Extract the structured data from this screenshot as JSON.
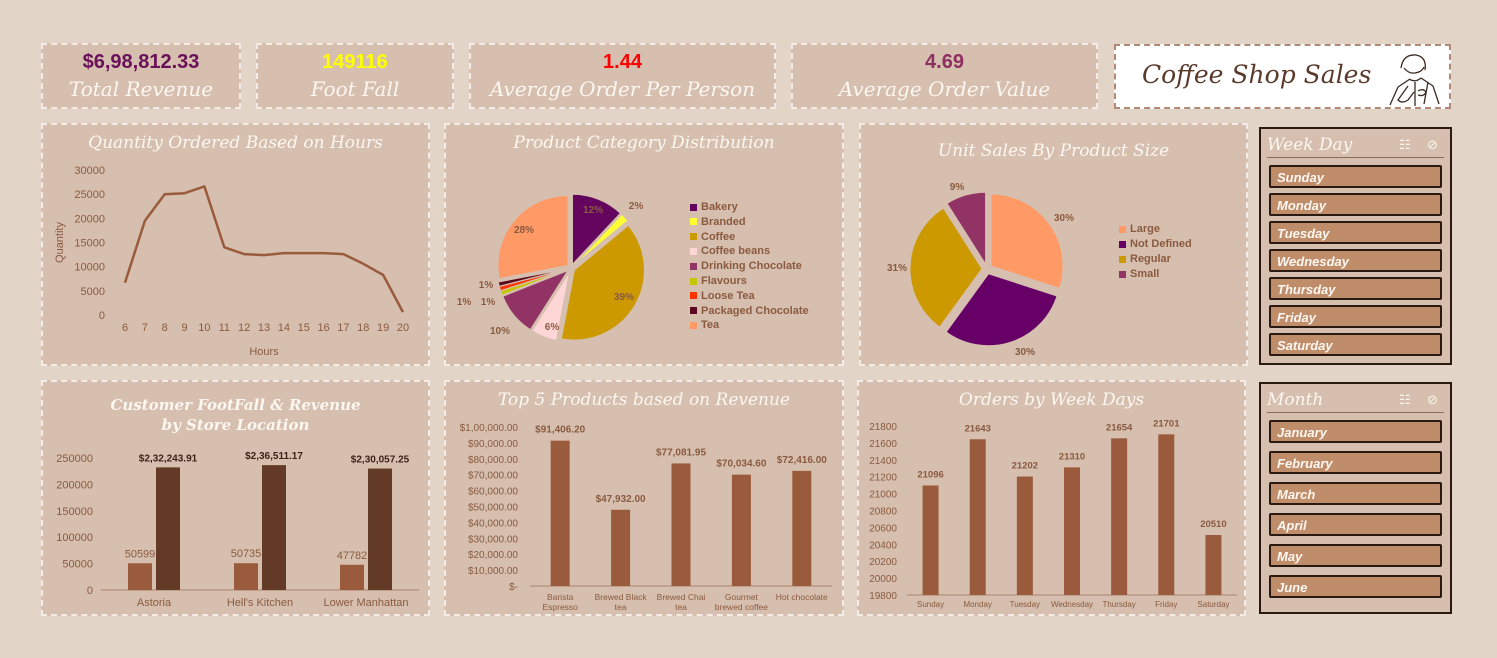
{
  "kpis": {
    "total_revenue": {
      "value": "$6,98,812.33",
      "label": "Total Revenue",
      "color": "#6a0f5a"
    },
    "foot_fall": {
      "value": "149116",
      "label": "Foot Fall",
      "color": "#ffff00"
    },
    "avg_order_person": {
      "value": "1.44",
      "label": "Average Order Per Person",
      "color": "#ff0000"
    },
    "avg_order_value": {
      "value": "4.69",
      "label": "Average Order Value",
      "color": "#8e2f61"
    }
  },
  "brand": {
    "title": "Coffee Shop Sales",
    "logo_icon": "barista-sketch-icon"
  },
  "slicers": {
    "weekday": {
      "title": "Week Day",
      "items": [
        "Sunday",
        "Monday",
        "Tuesday",
        "Wednesday",
        "Thursday",
        "Friday",
        "Saturday"
      ]
    },
    "month": {
      "title": "Month",
      "items": [
        "January",
        "February",
        "March",
        "April",
        "May",
        "June"
      ]
    },
    "icons": [
      "multi-select-icon",
      "clear-filter-icon"
    ]
  },
  "chart_data": [
    {
      "id": "hours",
      "type": "line",
      "title": "Quantity Ordered Based on Hours",
      "xlabel": "Hours",
      "ylabel": "Quantity",
      "x": [
        6,
        7,
        8,
        9,
        10,
        11,
        12,
        13,
        14,
        15,
        16,
        17,
        18,
        19,
        20
      ],
      "values": [
        6700,
        19500,
        25000,
        25200,
        26600,
        14000,
        12600,
        12400,
        12800,
        12800,
        12800,
        12600,
        10600,
        8300,
        600
      ],
      "ylim": [
        0,
        30000
      ],
      "yticks": [
        "0",
        "5000",
        "10000",
        "15000",
        "20000",
        "25000",
        "30000"
      ],
      "color": "#9a5b3c"
    },
    {
      "id": "category",
      "type": "pie",
      "title": "Product Category Distribution",
      "legend": "right",
      "slices": [
        {
          "name": "Bakery",
          "value": 12,
          "label": "12%",
          "color": "#65065e"
        },
        {
          "name": "Branded",
          "value": 2,
          "label": "2%",
          "color": "#ffff33"
        },
        {
          "name": "Coffee",
          "value": 39,
          "label": "39%",
          "color": "#cc9900"
        },
        {
          "name": "Coffee beans",
          "value": 6,
          "label": "6%",
          "color": "#ffd6d6"
        },
        {
          "name": "Drinking Chocolate",
          "value": 10,
          "label": "10%",
          "color": "#923366"
        },
        {
          "name": "Flavours",
          "value": 1,
          "label": "1%",
          "color": "#c6c600"
        },
        {
          "name": "Loose Tea",
          "value": 1,
          "label": "1%",
          "color": "#ff3300"
        },
        {
          "name": "Packaged Chocolate",
          "value": 1,
          "label": "1%",
          "color": "#5a0820"
        },
        {
          "name": "Tea",
          "value": 28,
          "label": "28%",
          "color": "#ff9966"
        }
      ]
    },
    {
      "id": "size",
      "type": "pie",
      "title": "Unit Sales By Product Size",
      "legend": "right",
      "slices": [
        {
          "name": "Large",
          "value": 30,
          "label": "30%",
          "color": "#ff9966"
        },
        {
          "name": "Not Defined",
          "value": 30,
          "label": "30%",
          "color": "#660066"
        },
        {
          "name": "Regular",
          "value": 31,
          "label": "31%",
          "color": "#cc9900"
        },
        {
          "name": "Small",
          "value": 9,
          "label": "9%",
          "color": "#923366"
        }
      ]
    },
    {
      "id": "store",
      "type": "bar",
      "title": "Customer FootFall & Revenue",
      "subtitle": "by Store Location",
      "categories": [
        "Astoria",
        "Hell's Kitchen",
        "Lower Manhattan"
      ],
      "series": [
        {
          "values": [
            50599,
            50735,
            47782
          ],
          "labels": [
            "50599",
            "50735",
            "47782"
          ],
          "color": "#9a5b3c"
        },
        {
          "values": [
            232243.91,
            236511.17,
            230057.25
          ],
          "labels": [
            "$2,32,243.91",
            "$2,36,511.17",
            "$2,30,057.25"
          ],
          "color": "#633a26"
        }
      ],
      "ylim": [
        0,
        250000
      ],
      "yticks": [
        "0",
        "50000",
        "100000",
        "150000",
        "200000",
        "250000"
      ]
    },
    {
      "id": "top5",
      "type": "bar",
      "title": "Top 5 Products based on Revenue",
      "categories": [
        [
          "Barista",
          "Espresso"
        ],
        [
          "Brewed Black",
          "tea"
        ],
        [
          "Brewed Chai",
          "tea"
        ],
        [
          "Gourmet",
          "brewed coffee"
        ],
        [
          "Hot chocolate"
        ]
      ],
      "values": [
        91406.2,
        47932.0,
        77081.95,
        70034.6,
        72416.0
      ],
      "labels": [
        "$91,406.20",
        "$47,932.00",
        "$77,081.95",
        "$70,034.60",
        "$72,416.00"
      ],
      "ylim": [
        0,
        100000
      ],
      "yticks": [
        "$-",
        "$10,000.00",
        "$20,000.00",
        "$30,000.00",
        "$40,000.00",
        "$50,000.00",
        "$60,000.00",
        "$70,000.00",
        "$80,000.00",
        "$90,000.00",
        "$1,00,000.00"
      ],
      "color": "#9a5b3c"
    },
    {
      "id": "weekdays",
      "type": "bar",
      "title": "Orders by Week Days",
      "categories": [
        "Sunday",
        "Monday",
        "Tuesday",
        "Wednesday",
        "Thursday",
        "Friday",
        "Saturday"
      ],
      "values": [
        21096,
        21643,
        21202,
        21310,
        21654,
        21701,
        20510
      ],
      "labels": [
        "21096",
        "21643",
        "21202",
        "21310",
        "21654",
        "21701",
        "20510"
      ],
      "ylim": [
        19800,
        21800
      ],
      "yticks": [
        "19800",
        "20000",
        "20200",
        "20400",
        "20600",
        "20800",
        "21000",
        "21200",
        "21400",
        "21600",
        "21800"
      ],
      "color": "#9a5b3c"
    }
  ]
}
